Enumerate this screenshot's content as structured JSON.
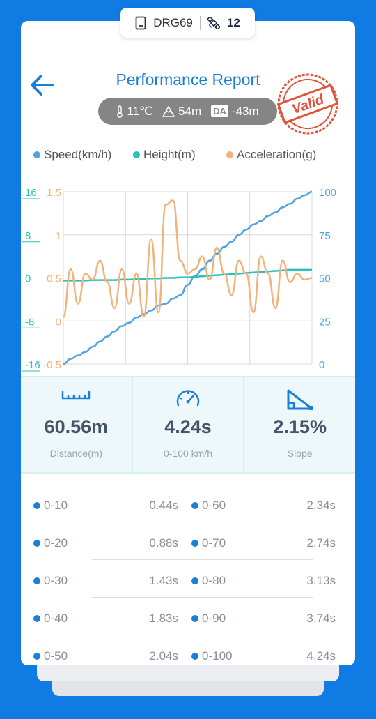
{
  "status": {
    "device": "DRG69",
    "satellites": "12"
  },
  "header": {
    "title": "Performance Report"
  },
  "conditions": {
    "temperature": "11℃",
    "altitude": "54m",
    "da_label": "DA",
    "density_altitude": "-43m"
  },
  "stamp": {
    "text": "Valid"
  },
  "legend": [
    {
      "label": "Speed(km/h)",
      "color": "#4ea3e2"
    },
    {
      "label": "Height(m)",
      "color": "#2bc0b8"
    },
    {
      "label": "Acceleration(g)",
      "color": "#f3b27a"
    }
  ],
  "chart_data": {
    "type": "line",
    "axes": {
      "left_height": {
        "ticks": [
          "16",
          "8",
          "0",
          "-8",
          "-16"
        ],
        "range": [
          -16,
          16
        ],
        "color": "#2bc0b8"
      },
      "left_accel": {
        "ticks": [
          "1.5",
          "1",
          "0.5",
          "0",
          "-0.5"
        ],
        "range": [
          -0.5,
          1.5
        ],
        "color": "#f3b27a"
      },
      "right_speed": {
        "ticks": [
          "100",
          "75",
          "50",
          "25",
          "0"
        ],
        "range": [
          0,
          100
        ],
        "color": "#4ea3e2"
      }
    },
    "grid": true,
    "series": [
      {
        "name": "Speed(km/h)",
        "axis": "right_speed",
        "color": "#4ea3e2",
        "values": [
          0,
          3,
          5,
          7,
          10,
          13,
          16,
          19,
          22,
          24,
          27,
          29,
          31,
          34,
          35,
          38,
          40,
          46,
          51,
          55,
          60,
          64,
          68,
          71,
          75,
          78,
          81,
          83,
          86,
          88,
          91,
          93,
          96,
          98,
          100
        ]
      },
      {
        "name": "Height(m)",
        "axis": "left_height",
        "color": "#2bc0b8",
        "values": [
          -0.5,
          -0.5,
          -0.5,
          -0.5,
          -0.4,
          -0.4,
          -0.4,
          -0.4,
          -0.3,
          -0.3,
          -0.2,
          -0.2,
          -0.1,
          -0.1,
          0,
          0,
          0.1,
          0.1,
          0.2,
          0.3,
          0.4,
          0.5,
          0.6,
          0.7,
          0.8,
          0.9,
          1.0,
          1.1,
          1.2,
          1.3,
          1.4,
          1.5,
          1.5,
          1.5,
          1.5
        ]
      },
      {
        "name": "Acceleration(g)",
        "axis": "left_accel",
        "color": "#f3b27a",
        "values": [
          0.05,
          0.6,
          0.2,
          0.55,
          0.48,
          0.7,
          0.45,
          0.15,
          0.6,
          0.2,
          0.55,
          0.05,
          0.95,
          0.1,
          1.35,
          1.4,
          0.7,
          0.55,
          0.6,
          0.75,
          0.48,
          0.85,
          0.55,
          0.3,
          0.7,
          0.55,
          0.1,
          0.75,
          0.55,
          0.15,
          0.7,
          0.45,
          0.55,
          0.48,
          0.5
        ]
      }
    ]
  },
  "stats": [
    {
      "value": "60.56m",
      "label": "Distance(m)",
      "icon": "ruler-icon"
    },
    {
      "value": "4.24s",
      "label": "0-100 km/h",
      "icon": "speedometer-icon"
    },
    {
      "value": "2.15%",
      "label": "Slope",
      "icon": "slope-icon"
    }
  ],
  "splits": [
    {
      "left_range": "0-10",
      "left_time": "0.44s",
      "right_range": "0-60",
      "right_time": "2.34s"
    },
    {
      "left_range": "0-20",
      "left_time": "0.88s",
      "right_range": "0-70",
      "right_time": "2.74s"
    },
    {
      "left_range": "0-30",
      "left_time": "1.43s",
      "right_range": "0-80",
      "right_time": "3.13s"
    },
    {
      "left_range": "0-40",
      "left_time": "1.83s",
      "right_range": "0-90",
      "right_time": "3.74s"
    },
    {
      "left_range": "0-50",
      "left_time": "2.04s",
      "right_range": "0-100",
      "right_time": "4.24s"
    }
  ]
}
